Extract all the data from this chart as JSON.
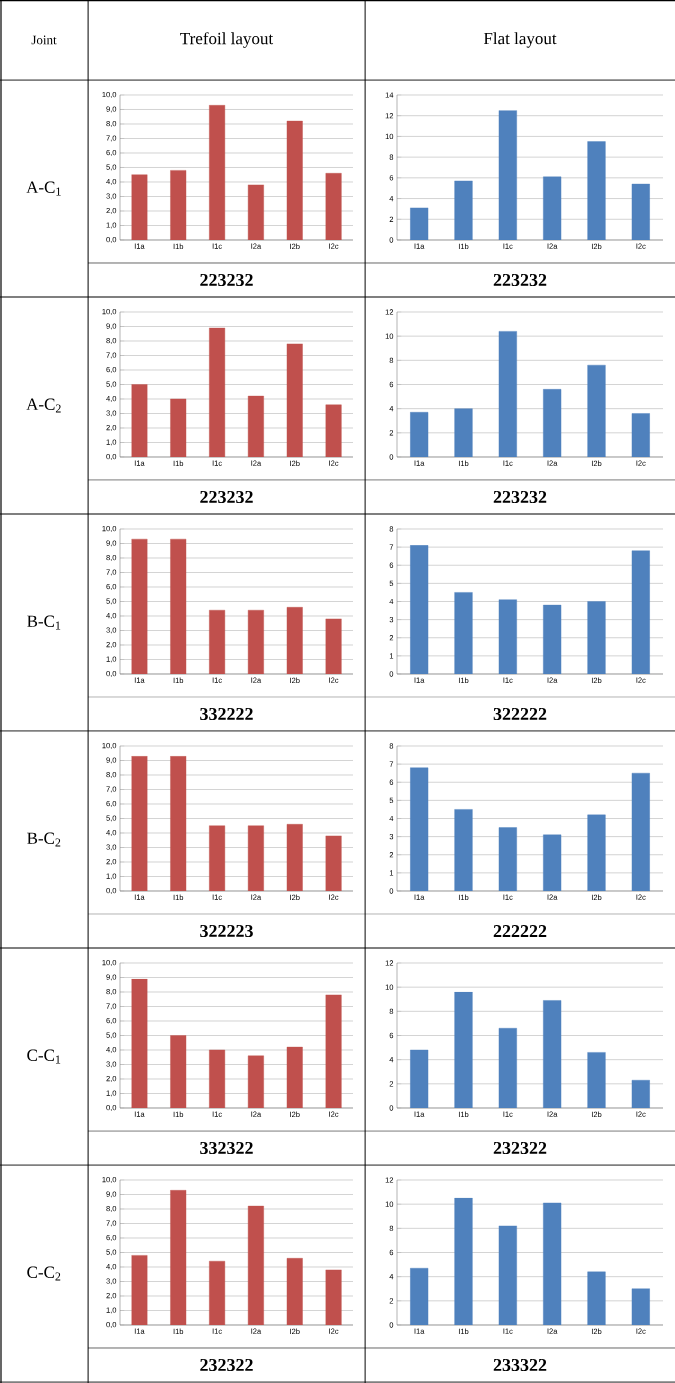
{
  "chart_data": [
    {
      "type": "bar",
      "title": "Trefoil layout",
      "annotations": [
        "Joint",
        "A-C$_{1}$",
        "223232"
      ],
      "categories": [
        "I1a",
        "I1b",
        "I1c",
        "I2a",
        "I2b",
        "I2c"
      ],
      "values": [
        4.5,
        4.8,
        9.3,
        3.8,
        8.2,
        4.6
      ],
      "color": "#c0504d",
      "ylim": [
        0,
        10
      ],
      "yticks": [
        {
          "value": 0,
          "label": "0,0"
        },
        {
          "value": 1,
          "label": "1,0"
        },
        {
          "value": 2,
          "label": "2,0"
        },
        {
          "value": 3,
          "label": "3,0"
        },
        {
          "value": 4,
          "label": "4,0"
        },
        {
          "value": 5,
          "label": "5,0"
        },
        {
          "value": 6,
          "label": "6,0"
        },
        {
          "value": 7,
          "label": "7,0"
        },
        {
          "value": 8,
          "label": "8,0"
        },
        {
          "value": 9,
          "label": "9,0"
        },
        {
          "value": 10,
          "label": "10,0"
        }
      ],
      "grid": "y"
    },
    {
      "type": "bar",
      "title": "Flat layout",
      "annotations": [
        "223232"
      ],
      "categories": [
        "I1a",
        "I1b",
        "I1c",
        "I2a",
        "I2b",
        "I2c"
      ],
      "values": [
        3.1,
        5.7,
        12.5,
        6.1,
        9.5,
        5.4
      ],
      "color": "#4f81bd",
      "ylim": [
        0,
        14
      ],
      "yticks": [
        0,
        2,
        4,
        6,
        8,
        10,
        12,
        14
      ],
      "grid": "y"
    },
    {
      "type": "bar",
      "annotations": [
        "A-C$_{2}$",
        "223232"
      ],
      "categories": [
        "I1a",
        "I1b",
        "I1c",
        "I2a",
        "I2b",
        "I2c"
      ],
      "values": [
        5.0,
        4.0,
        8.9,
        4.2,
        7.8,
        3.6
      ],
      "color": "#c0504d",
      "ylim": [
        0,
        10
      ],
      "yticks": [
        {
          "value": 0,
          "label": "0,0"
        },
        {
          "value": 1,
          "label": "1,0"
        },
        {
          "value": 2,
          "label": "2,0"
        },
        {
          "value": 3,
          "label": "3,0"
        },
        {
          "value": 4,
          "label": "4,0"
        },
        {
          "value": 5,
          "label": "5,0"
        },
        {
          "value": 6,
          "label": "6,0"
        },
        {
          "value": 7,
          "label": "7,0"
        },
        {
          "value": 8,
          "label": "8,0"
        },
        {
          "value": 9,
          "label": "9,0"
        },
        {
          "value": 10,
          "label": "10,0"
        }
      ],
      "grid": "y"
    },
    {
      "type": "bar",
      "annotations": [
        "223232"
      ],
      "categories": [
        "I1a",
        "I1b",
        "I1c",
        "I2a",
        "I2b",
        "I2c"
      ],
      "values": [
        3.7,
        4.0,
        10.4,
        5.6,
        7.6,
        3.6
      ],
      "color": "#4f81bd",
      "ylim": [
        0,
        12
      ],
      "yticks": [
        0,
        2,
        4,
        6,
        8,
        10,
        12
      ],
      "grid": "y"
    },
    {
      "type": "bar",
      "annotations": [
        "B-C$_{1}$",
        "332222"
      ],
      "categories": [
        "I1a",
        "I1b",
        "I1c",
        "I2a",
        "I2b",
        "I2c"
      ],
      "values": [
        9.3,
        9.3,
        4.4,
        4.4,
        4.6,
        3.8
      ],
      "color": "#c0504d",
      "ylim": [
        0,
        10
      ],
      "yticks": [
        {
          "value": 0,
          "label": "0,0"
        },
        {
          "value": 1,
          "label": "1,0"
        },
        {
          "value": 2,
          "label": "2,0"
        },
        {
          "value": 3,
          "label": "3,0"
        },
        {
          "value": 4,
          "label": "4,0"
        },
        {
          "value": 5,
          "label": "5,0"
        },
        {
          "value": 6,
          "label": "6,0"
        },
        {
          "value": 7,
          "label": "7,0"
        },
        {
          "value": 8,
          "label": "8,0"
        },
        {
          "value": 9,
          "label": "9,0"
        },
        {
          "value": 10,
          "label": "10,0"
        }
      ],
      "grid": "y"
    },
    {
      "type": "bar",
      "annotations": [
        "322222"
      ],
      "categories": [
        "I1a",
        "I1b",
        "I1c",
        "I2a",
        "I2b",
        "I2c"
      ],
      "values": [
        7.1,
        4.5,
        4.1,
        3.8,
        4.0,
        6.8
      ],
      "color": "#4f81bd",
      "ylim": [
        0,
        8
      ],
      "yticks": [
        0,
        1,
        2,
        3,
        4,
        5,
        6,
        7,
        8
      ],
      "grid": "y"
    },
    {
      "type": "bar",
      "annotations": [
        "B-C$_{2}$",
        "322223"
      ],
      "categories": [
        "I1a",
        "I1b",
        "I1c",
        "I2a",
        "I2b",
        "I2c"
      ],
      "values": [
        9.3,
        9.3,
        4.5,
        4.5,
        4.6,
        3.8
      ],
      "color": "#c0504d",
      "ylim": [
        0,
        10
      ],
      "yticks": [
        {
          "value": 0,
          "label": "0,0"
        },
        {
          "value": 1,
          "label": "1,0"
        },
        {
          "value": 2,
          "label": "2,0"
        },
        {
          "value": 3,
          "label": "3,0"
        },
        {
          "value": 4,
          "label": "4,0"
        },
        {
          "value": 5,
          "label": "5,0"
        },
        {
          "value": 6,
          "label": "6,0"
        },
        {
          "value": 7,
          "label": "7,0"
        },
        {
          "value": 8,
          "label": "8,0"
        },
        {
          "value": 9,
          "label": "9,0"
        },
        {
          "value": 10,
          "label": "10,0"
        }
      ],
      "grid": "y"
    },
    {
      "type": "bar",
      "annotations": [
        "222222"
      ],
      "categories": [
        "I1a",
        "I1b",
        "I1c",
        "I2a",
        "I2b",
        "I2c"
      ],
      "values": [
        6.8,
        4.5,
        3.5,
        3.1,
        4.2,
        6.5
      ],
      "color": "#4f81bd",
      "ylim": [
        0,
        8
      ],
      "yticks": [
        0,
        1,
        2,
        3,
        4,
        5,
        6,
        7,
        8
      ],
      "grid": "y"
    },
    {
      "type": "bar",
      "annotations": [
        "C-C$_{1}$",
        "332322"
      ],
      "categories": [
        "I1a",
        "I1b",
        "I1c",
        "I2a",
        "I2b",
        "I2c"
      ],
      "values": [
        8.9,
        5.0,
        4.0,
        3.6,
        4.2,
        7.8
      ],
      "color": "#c0504d",
      "ylim": [
        0,
        10
      ],
      "yticks": [
        {
          "value": 0,
          "label": "0,0"
        },
        {
          "value": 1,
          "label": "1,0"
        },
        {
          "value": 2,
          "label": "2,0"
        },
        {
          "value": 3,
          "label": "3,0"
        },
        {
          "value": 4,
          "label": "4,0"
        },
        {
          "value": 5,
          "label": "5,0"
        },
        {
          "value": 6,
          "label": "6,0"
        },
        {
          "value": 7,
          "label": "7,0"
        },
        {
          "value": 8,
          "label": "8,0"
        },
        {
          "value": 9,
          "label": "9,0"
        },
        {
          "value": 10,
          "label": "10,0"
        }
      ],
      "grid": "y"
    },
    {
      "type": "bar",
      "annotations": [
        "232322"
      ],
      "categories": [
        "I1a",
        "I1b",
        "I1c",
        "I2a",
        "I2b",
        "I2c"
      ],
      "values": [
        4.8,
        9.6,
        6.6,
        8.9,
        4.6,
        2.3
      ],
      "color": "#4f81bd",
      "ylim": [
        0,
        12
      ],
      "yticks": [
        0,
        2,
        4,
        6,
        8,
        10,
        12
      ],
      "grid": "y"
    },
    {
      "type": "bar",
      "annotations": [
        "C-C$_{2}$",
        "232322"
      ],
      "categories": [
        "I1a",
        "I1b",
        "I1c",
        "I2a",
        "I2b",
        "I2c"
      ],
      "values": [
        4.8,
        9.3,
        4.4,
        8.2,
        4.6,
        3.8
      ],
      "color": "#c0504d",
      "ylim": [
        0,
        10
      ],
      "yticks": [
        {
          "value": 0,
          "label": "0,0"
        },
        {
          "value": 1,
          "label": "1,0"
        },
        {
          "value": 2,
          "label": "2,0"
        },
        {
          "value": 3,
          "label": "3,0"
        },
        {
          "value": 4,
          "label": "4,0"
        },
        {
          "value": 5,
          "label": "5,0"
        },
        {
          "value": 6,
          "label": "6,0"
        },
        {
          "value": 7,
          "label": "7,0"
        },
        {
          "value": 8,
          "label": "8,0"
        },
        {
          "value": 9,
          "label": "9,0"
        },
        {
          "value": 10,
          "label": "10,0"
        }
      ],
      "grid": "y"
    },
    {
      "type": "bar",
      "annotations": [
        "233322"
      ],
      "categories": [
        "I1a",
        "I1b",
        "I1c",
        "I2a",
        "I2b",
        "I2c"
      ],
      "values": [
        4.7,
        10.5,
        8.2,
        10.1,
        4.4,
        3.0
      ],
      "color": "#4f81bd",
      "ylim": [
        0,
        12
      ],
      "yticks": [
        0,
        2,
        4,
        6,
        8,
        10,
        12
      ],
      "grid": "y"
    }
  ]
}
